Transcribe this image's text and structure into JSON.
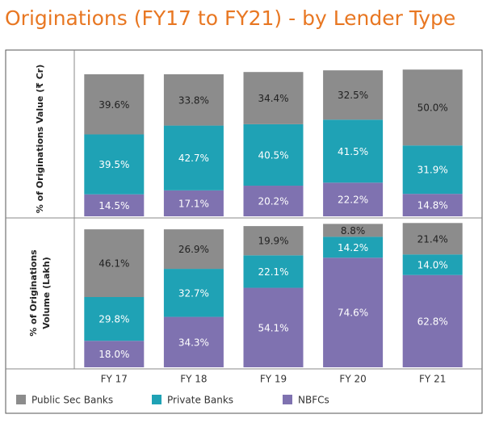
{
  "title": "Originations (FY17 to FY21) - by Lender Type",
  "chart_data": [
    {
      "type": "bar",
      "stacked": true,
      "ylabel": "% of Originations Value (₹ Cr)",
      "ylim": [
        0,
        100
      ],
      "series": [
        {
          "name": "NBFCs",
          "color": "#7f72b0",
          "label_color": "#ffffff",
          "values": [
            14.5,
            17.1,
            20.2,
            22.2,
            14.8
          ],
          "value_labels": [
            "14.5%",
            "17.1%",
            "20.2%",
            "22.2%",
            "14.8%"
          ]
        },
        {
          "name": "Private Banks",
          "color": "#1fa2b5",
          "label_color": "#ffffff",
          "values": [
            39.5,
            42.7,
            40.5,
            41.5,
            31.9
          ],
          "value_labels": [
            "39.5%",
            "42.7%",
            "40.5%",
            "41.5%",
            "31.9%"
          ]
        },
        {
          "name": "Public Sec Banks",
          "color": "#8c8c8c",
          "label_color": "#222222",
          "values": [
            39.6,
            33.8,
            34.4,
            32.5,
            50.0
          ],
          "value_labels": [
            "39.6%",
            "33.8%",
            "34.4%",
            "32.5%",
            "50.0%"
          ]
        }
      ]
    },
    {
      "type": "bar",
      "stacked": true,
      "ylabel": "% of Originations Volume (Lakh)",
      "ylim": [
        0,
        100
      ],
      "categories": [
        "FY 17",
        "FY 18",
        "FY 19",
        "FY 20",
        "FY 21"
      ],
      "series": [
        {
          "color": "#7f72b0",
          "label_color": "#ffffff",
          "values": [
            18.0,
            34.3,
            54.1,
            74.6,
            62.8
          ],
          "value_labels": [
            "18.0%",
            "34.3%",
            "54.1%",
            "74.6%",
            "62.8%"
          ]
        },
        {
          "color": "#1fa2b5",
          "label_color": "#ffffff",
          "values": [
            29.8,
            32.7,
            22.1,
            14.2,
            14.0
          ],
          "value_labels": [
            "29.8%",
            "32.7%",
            "22.1%",
            "14.2%",
            "14.0%"
          ]
        },
        {
          "color": "#8c8c8c",
          "label_color": "#222222",
          "values": [
            46.1,
            26.9,
            19.9,
            8.8,
            21.4
          ],
          "value_labels": [
            "46.1%",
            "26.9%",
            "19.9%",
            "8.8%",
            "21.4%"
          ]
        }
      ]
    }
  ]
}
